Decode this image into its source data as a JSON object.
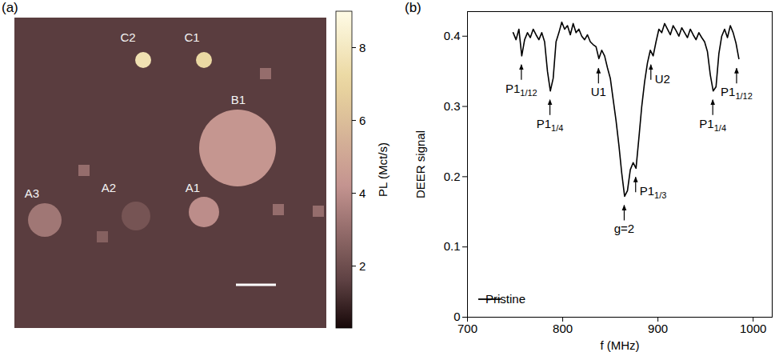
{
  "chart_data": [
    {
      "type": "image",
      "title": "(a)",
      "background": 1.5,
      "spots": [
        {
          "label": "C2",
          "pl": 7.6
        },
        {
          "label": "C1",
          "pl": 7.2
        },
        {
          "label": "B1",
          "pl": 4.3
        },
        {
          "label": "A1",
          "pl": 4.0
        },
        {
          "label": "A2",
          "pl": 2.2
        },
        {
          "label": "A3",
          "pl": 3.3
        }
      ],
      "squares": [
        3.0,
        3.0,
        3.0,
        3.0,
        2.6
      ],
      "colorbar": {
        "label": "PL (Mct/s)",
        "range": [
          0.3,
          9
        ],
        "ticks": [
          2,
          4,
          6,
          8
        ]
      }
    },
    {
      "type": "line",
      "title": "(b)",
      "xlabel": "f (MHz)",
      "ylabel": "DEER signal",
      "xlim": [
        700,
        1020
      ],
      "xticks": [
        700,
        800,
        900,
        1000
      ],
      "ylim": [
        0,
        0.435
      ],
      "yticks": [
        0,
        0.1,
        0.2,
        0.3,
        0.4
      ],
      "legend": "lower left",
      "x": [
        748,
        751,
        754,
        757,
        760,
        763,
        766,
        769,
        772,
        775,
        778,
        781,
        784,
        787,
        790,
        793,
        796,
        799,
        802,
        805,
        808,
        811,
        814,
        817,
        820,
        823,
        826,
        829,
        832,
        835,
        838,
        841,
        844,
        847,
        850,
        853,
        856,
        859,
        862,
        865,
        868,
        871,
        874,
        877,
        880,
        883,
        886,
        889,
        892,
        895,
        898,
        901,
        904,
        907,
        910,
        913,
        916,
        919,
        922,
        925,
        928,
        931,
        934,
        937,
        940,
        943,
        946,
        949,
        952,
        955,
        958,
        961,
        964,
        967,
        970,
        973,
        976,
        979,
        982,
        985
      ],
      "series": [
        {
          "name": "Pristine",
          "color": "#000000",
          "values": [
            0.405,
            0.395,
            0.41,
            0.372,
            0.395,
            0.405,
            0.398,
            0.41,
            0.402,
            0.395,
            0.405,
            0.392,
            0.35,
            0.322,
            0.34,
            0.392,
            0.405,
            0.42,
            0.41,
            0.415,
            0.402,
            0.418,
            0.405,
            0.41,
            0.4,
            0.395,
            0.402,
            0.392,
            0.388,
            0.385,
            0.368,
            0.38,
            0.372,
            0.355,
            0.34,
            0.31,
            0.28,
            0.245,
            0.205,
            0.172,
            0.18,
            0.21,
            0.22,
            0.212,
            0.255,
            0.3,
            0.335,
            0.362,
            0.38,
            0.372,
            0.392,
            0.41,
            0.405,
            0.418,
            0.41,
            0.402,
            0.415,
            0.408,
            0.4,
            0.412,
            0.405,
            0.398,
            0.41,
            0.402,
            0.395,
            0.405,
            0.398,
            0.392,
            0.378,
            0.345,
            0.322,
            0.328,
            0.375,
            0.4,
            0.41,
            0.398,
            0.415,
            0.405,
            0.39,
            0.368
          ]
        }
      ],
      "annotations": [
        {
          "text": "P1",
          "sub": "1/12",
          "x": 757,
          "y": 0.36
        },
        {
          "text": "P1",
          "sub": "1/4",
          "x": 787,
          "y": 0.31
        },
        {
          "text": "U1",
          "x": 838,
          "y": 0.355
        },
        {
          "text": "g=2",
          "x": 865,
          "y": 0.16
        },
        {
          "text": "P1",
          "sub": "1/3",
          "x": 877,
          "y": 0.2
        },
        {
          "text": "U2",
          "x": 893,
          "y": 0.36
        },
        {
          "text": "P1",
          "sub": "1/4",
          "x": 958,
          "y": 0.31
        },
        {
          "text": "P1",
          "sub": "1/12",
          "x": 983,
          "y": 0.355
        }
      ]
    }
  ]
}
